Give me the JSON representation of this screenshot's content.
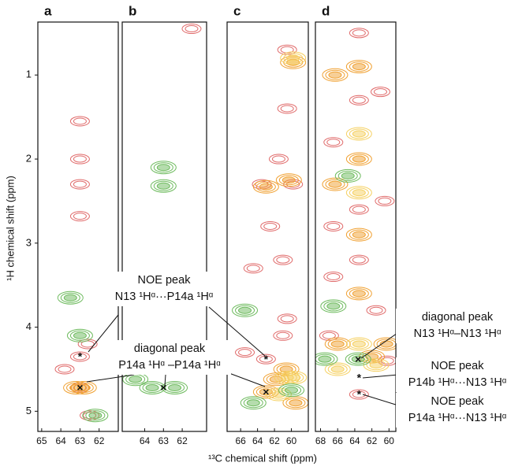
{
  "chart_data": [
    {
      "type": "contour",
      "panel": "a",
      "xlim": [
        65.2,
        61.0
      ],
      "ylim": [
        0.37,
        5.24
      ],
      "xticks": [
        65,
        64,
        63,
        62
      ],
      "yticks": [
        1,
        2,
        3,
        4,
        5
      ],
      "series": [
        {
          "color": "#e06a6a",
          "x": [
            63,
            63,
            63,
            63,
            63,
            62.6,
            63.8,
            63,
            62.5
          ],
          "y": [
            1.55,
            2.0,
            2.3,
            2.68,
            4.35,
            4.2,
            4.5,
            4.72,
            5.05
          ]
        },
        {
          "color": "#f0a030",
          "x": [
            63.2,
            62.8
          ],
          "y": [
            4.72,
            4.72
          ]
        },
        {
          "color": "#6cba5c",
          "x": [
            63.5,
            63.0,
            62.2
          ],
          "y": [
            3.65,
            4.1,
            5.05
          ]
        }
      ],
      "markers": [
        {
          "x": 63,
          "y": 4.35,
          "symbol": "*"
        },
        {
          "x": 63,
          "y": 4.72,
          "symbol": "×"
        }
      ]
    },
    {
      "type": "contour",
      "panel": "b",
      "xlim": [
        65.2,
        60.7
      ],
      "ylim": [
        0.37,
        5.24
      ],
      "xticks": [
        64,
        63,
        62
      ],
      "series": [
        {
          "color": "#6cba5c",
          "x": [
            63,
            63,
            63.6,
            62.4,
            64.5
          ],
          "y": [
            2.1,
            2.32,
            4.72,
            4.72,
            4.62
          ]
        },
        {
          "color": "#e06a6a",
          "x": [
            61.5
          ],
          "y": [
            0.45
          ]
        }
      ],
      "markers": [
        {
          "x": 63,
          "y": 4.72,
          "symbol": "×"
        }
      ]
    },
    {
      "type": "contour",
      "panel": "c",
      "xlim": [
        67.6,
        58.0
      ],
      "ylim": [
        0.37,
        5.24
      ],
      "xticks": [
        66,
        64,
        62,
        60
      ],
      "series": [
        {
          "color": "#e06a6a",
          "x": [
            60.5,
            60.5,
            61.5,
            59.8,
            62.5,
            64.5,
            61,
            65.5,
            60.5,
            61,
            63.5,
            63
          ],
          "y": [
            0.7,
            1.4,
            2.0,
            2.3,
            2.8,
            3.3,
            3.2,
            4.3,
            3.9,
            4.1,
            2.3,
            4.38
          ]
        },
        {
          "color": "#f0a030",
          "x": [
            59.8,
            60.3,
            63,
            60.6,
            61.8,
            59.5,
            63
          ],
          "y": [
            0.85,
            2.25,
            2.33,
            4.5,
            4.62,
            4.9,
            4.77
          ]
        },
        {
          "color": "#f5d060",
          "x": [
            59.8,
            60.5,
            61.5,
            59.7
          ],
          "y": [
            0.8,
            4.6,
            4.8,
            4.6
          ]
        },
        {
          "color": "#6cba5c",
          "x": [
            65.5,
            64.5,
            60
          ],
          "y": [
            3.8,
            4.9,
            4.75
          ]
        }
      ],
      "markers": [
        {
          "x": 63,
          "y": 4.38,
          "symbol": "*"
        },
        {
          "x": 63,
          "y": 4.77,
          "symbol": "×"
        }
      ]
    },
    {
      "type": "contour",
      "panel": "d",
      "xlim": [
        68.6,
        59.2
      ],
      "ylim": [
        0.37,
        5.24
      ],
      "xticks": [
        68,
        66,
        64,
        62,
        60
      ],
      "series": [
        {
          "color": "#e06a6a",
          "x": [
            63.5,
            63.5,
            63.5,
            63.5,
            66.5,
            66.5,
            66.5,
            61,
            60.5,
            61.5,
            67,
            63.5,
            60.2
          ],
          "y": [
            0.5,
            1.3,
            2.6,
            3.2,
            1.8,
            2.8,
            3.4,
            1.2,
            2.5,
            3.8,
            4.1,
            4.8,
            4.4
          ]
        },
        {
          "color": "#f0a030",
          "x": [
            63.5,
            63.5,
            63.5,
            66.3,
            66.3,
            63.5,
            66,
            62,
            60.3
          ],
          "y": [
            0.9,
            2.0,
            2.9,
            1.0,
            2.3,
            3.6,
            4.2,
            4.35,
            4.2
          ]
        },
        {
          "color": "#f5d060",
          "x": [
            63.5,
            63.5,
            63.5,
            66,
            61.5
          ],
          "y": [
            1.7,
            2.4,
            4.2,
            4.5,
            4.45
          ]
        },
        {
          "color": "#6cba5c",
          "x": [
            63.6,
            66.5,
            67.5,
            64.8
          ],
          "y": [
            4.38,
            3.75,
            4.38,
            2.2
          ]
        }
      ],
      "markers": [
        {
          "x": 63.6,
          "y": 4.38,
          "symbol": "×"
        },
        {
          "x": 63.5,
          "y": 4.6,
          "symbol": "*"
        },
        {
          "x": 63.5,
          "y": 4.8,
          "symbol": "*"
        }
      ]
    }
  ],
  "xlabel": "¹³C  chemical shift (ppm)",
  "ylabel": "¹H chemical shift (ppm)",
  "annotations": [
    {
      "title": "NOE peak",
      "text": "N13 ¹Hᵅ···P14a ¹Hᵅ"
    },
    {
      "title": "diagonal peak",
      "text": "P14a ¹Hᵅ –P14a ¹Hᵅ"
    },
    {
      "title": "diagonal peak",
      "text": "N13 ¹Hᵅ–N13 ¹Hᵅ"
    },
    {
      "title": "NOE peak",
      "text": "P14b ¹Hᵅ···N13 ¹Hᵅ"
    },
    {
      "title": "NOE peak",
      "text": "P14a ¹Hᵅ···N13 ¹Hᵅ"
    }
  ]
}
